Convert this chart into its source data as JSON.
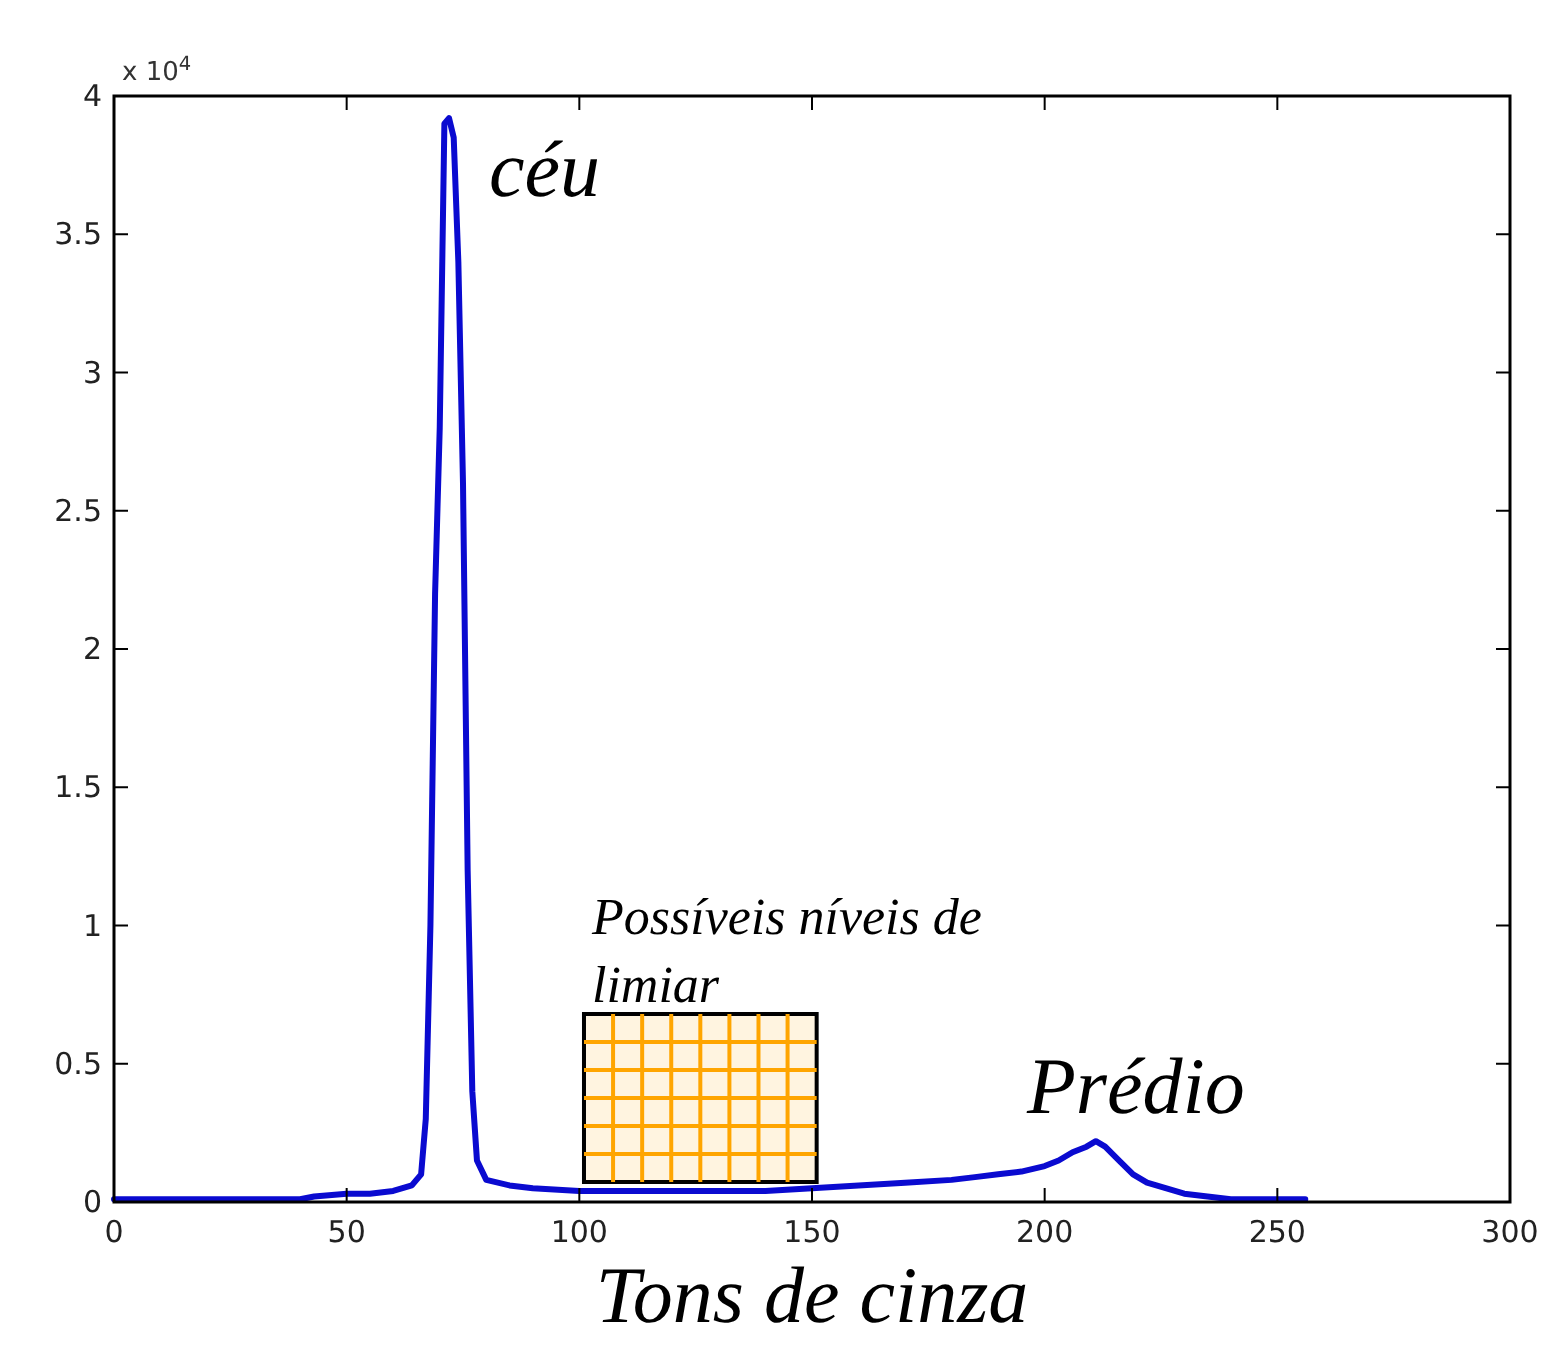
{
  "chart_data": {
    "type": "line",
    "xlabel": "Tons de cinza",
    "x": [
      0,
      20,
      40,
      43,
      50,
      55,
      60,
      64,
      66,
      67,
      68,
      69,
      70,
      71,
      72,
      73,
      74,
      75,
      76,
      77,
      78,
      80,
      85,
      90,
      100,
      110,
      120,
      130,
      140,
      150,
      160,
      170,
      180,
      185,
      190,
      195,
      200,
      203,
      206,
      209,
      211,
      213,
      216,
      219,
      222,
      226,
      230,
      235,
      240,
      250,
      256
    ],
    "series": [
      {
        "color": "#0a0ad0",
        "values": [
          0.01,
          0.01,
          0.01,
          0.02,
          0.03,
          0.03,
          0.04,
          0.06,
          0.1,
          0.3,
          1.0,
          2.2,
          2.8,
          3.9,
          3.92,
          3.85,
          3.4,
          2.6,
          1.2,
          0.4,
          0.15,
          0.08,
          0.06,
          0.05,
          0.04,
          0.04,
          0.04,
          0.04,
          0.04,
          0.05,
          0.06,
          0.07,
          0.08,
          0.09,
          0.1,
          0.11,
          0.13,
          0.15,
          0.18,
          0.2,
          0.22,
          0.2,
          0.15,
          0.1,
          0.07,
          0.05,
          0.03,
          0.02,
          0.01,
          0.01,
          0.01
        ]
      }
    ],
    "xlim": [
      0,
      300
    ],
    "xticks": [
      0,
      50,
      100,
      150,
      200,
      250,
      300
    ],
    "ylim": [
      0,
      4
    ],
    "yticks": [
      0,
      0.5,
      1,
      1.5,
      2,
      2.5,
      3,
      3.5,
      4
    ],
    "bands": [
      {
        "axis": "x",
        "from": 101,
        "to": 151,
        "color": "#ffa500",
        "label": "Possíveis níveis de limiar"
      }
    ],
    "annotations": [
      "x 10$^{4}$",
      {
        "text": "céu",
        "x": 72,
        "y": 3.92
      },
      {
        "text": "Prédio",
        "x": 211,
        "y": 0.22
      }
    ]
  }
}
